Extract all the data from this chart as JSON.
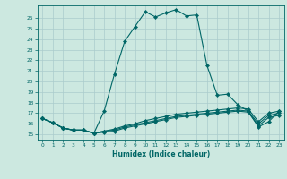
{
  "title": "",
  "xlabel": "Humidex (Indice chaleur)",
  "bg_color": "#cce8e0",
  "grid_color": "#aacccc",
  "line_color": "#006666",
  "xlim": [
    -0.5,
    23.5
  ],
  "ylim": [
    14.5,
    27.2
  ],
  "xticks": [
    0,
    1,
    2,
    3,
    4,
    5,
    6,
    7,
    8,
    9,
    10,
    11,
    12,
    13,
    14,
    15,
    16,
    17,
    18,
    19,
    20,
    21,
    22,
    23
  ],
  "yticks": [
    15,
    16,
    17,
    18,
    19,
    20,
    21,
    22,
    23,
    24,
    25,
    26
  ],
  "line1": [
    16.5,
    16.1,
    15.6,
    15.4,
    15.4,
    15.1,
    17.2,
    20.7,
    23.8,
    25.2,
    26.6,
    26.1,
    26.5,
    26.8,
    26.2,
    26.3,
    21.5,
    18.7,
    18.8,
    17.8,
    17.2,
    15.7,
    16.2,
    17.2
  ],
  "line2": [
    16.5,
    16.1,
    15.6,
    15.4,
    15.4,
    15.1,
    15.3,
    15.5,
    15.8,
    16.0,
    16.3,
    16.5,
    16.7,
    16.9,
    17.0,
    17.1,
    17.2,
    17.3,
    17.4,
    17.5,
    17.4,
    16.2,
    17.0,
    17.2
  ],
  "line3": [
    16.5,
    16.1,
    15.6,
    15.4,
    15.4,
    15.1,
    15.3,
    15.4,
    15.7,
    15.9,
    16.1,
    16.3,
    16.5,
    16.7,
    16.8,
    16.9,
    17.0,
    17.1,
    17.2,
    17.3,
    17.2,
    16.0,
    16.8,
    17.0
  ],
  "line4": [
    16.5,
    16.1,
    15.6,
    15.4,
    15.4,
    15.1,
    15.2,
    15.3,
    15.6,
    15.8,
    16.0,
    16.2,
    16.4,
    16.6,
    16.7,
    16.8,
    16.9,
    17.0,
    17.1,
    17.2,
    17.1,
    15.8,
    16.6,
    16.8
  ]
}
